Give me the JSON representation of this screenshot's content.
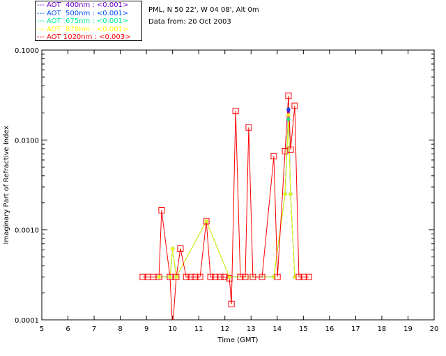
{
  "legend": [
    {
      "label": "AOT  400nm : <0.001>",
      "color": "#6a00c8"
    },
    {
      "label": "AOT  500nm : <0.001>",
      "color": "#0050ff"
    },
    {
      "label": "AOT  675nm : <0.001>",
      "color": "#00f090"
    },
    {
      "label": "AOT  870nm : <0.001>",
      "color": "#ffff00"
    },
    {
      "label": "AOT 1020nm : <0.003>",
      "color": "#ff0000"
    }
  ],
  "info": {
    "site": "PML, N 50 22', W 04 08', Alt 0m",
    "date": "Data from: 20 Oct 2003"
  },
  "chart_data": {
    "type": "line",
    "xlabel": "Time (GMT)",
    "ylabel": "Imaginary Part of Refractive Index",
    "xlim": [
      5,
      20
    ],
    "ylim": [
      0.0001,
      0.1
    ],
    "yscale": "log",
    "xticks": [
      "5",
      "6",
      "7",
      "8",
      "9",
      "10",
      "11",
      "12",
      "13",
      "14",
      "15",
      "16",
      "17",
      "18",
      "19",
      "20"
    ],
    "yticks": [
      "0.0001",
      "0.0010",
      "0.0100",
      "0.1000"
    ],
    "series": [
      {
        "name": "AOT 1020nm",
        "color": "#ff0000",
        "x": [
          8.86,
          9.05,
          9.26,
          9.48,
          9.58,
          9.9,
          10.0,
          10.14,
          10.3,
          10.52,
          10.7,
          10.86,
          11.05,
          11.29,
          11.45,
          11.63,
          11.82,
          11.98,
          12.17,
          12.25,
          12.41,
          12.59,
          12.78,
          12.91,
          13.07,
          13.42,
          13.87,
          14.01,
          14.3,
          14.43,
          14.51,
          14.67,
          14.83,
          15.02,
          15.21
        ],
        "y": [
          0.0003,
          0.0003,
          0.0003,
          0.0003,
          0.00165,
          0.0003,
          8e-05,
          0.0003,
          0.00062,
          0.0003,
          0.0003,
          0.0003,
          0.0003,
          0.00125,
          0.0003,
          0.0003,
          0.0003,
          0.0003,
          0.00029,
          0.00015,
          0.021,
          0.0003,
          0.0003,
          0.0138,
          0.0003,
          0.0003,
          0.0066,
          0.0003,
          0.0075,
          0.031,
          0.0078,
          0.024,
          0.0003,
          0.0003,
          0.0003
        ]
      },
      {
        "name": "AOT 870nm",
        "color": "#ffff00",
        "x": [
          9.48,
          9.9,
          10.0,
          10.14,
          11.29,
          12.17,
          13.87,
          14.3,
          14.43,
          14.51,
          14.67
        ],
        "y": [
          0.0003,
          0.0003,
          0.00062,
          0.0003,
          0.00125,
          0.0003,
          0.0003,
          0.0025,
          0.019,
          0.0025,
          0.0003
        ]
      },
      {
        "name": "AOT 675nm",
        "color": "#00f090",
        "x": [
          9.48,
          9.9,
          10.0,
          10.14,
          11.29,
          12.17,
          13.87,
          14.3,
          14.43,
          14.51,
          14.67
        ],
        "y": [
          0.0003,
          0.0003,
          0.00062,
          0.0003,
          0.00125,
          0.0003,
          0.0003,
          0.0025,
          0.017,
          0.0025,
          0.0003
        ]
      },
      {
        "name": "AOT 500nm",
        "color": "#0050ff",
        "x": [
          9.48,
          9.9,
          10.0,
          10.14,
          11.29,
          12.17,
          13.87,
          14.3,
          14.43,
          14.51,
          14.67
        ],
        "y": [
          0.0003,
          0.0003,
          0.00062,
          0.0003,
          0.00125,
          0.0003,
          0.0003,
          0.0025,
          0.022,
          0.0025,
          0.0003
        ]
      },
      {
        "name": "AOT 400nm",
        "color": "#6a00c8",
        "x": [
          9.48,
          9.9,
          10.0,
          10.14,
          11.29,
          12.17,
          13.87,
          14.3,
          14.43,
          14.51,
          14.67
        ],
        "y": [
          0.0003,
          0.0003,
          0.00062,
          0.0003,
          0.00125,
          0.0003,
          0.0003,
          0.0025,
          0.021,
          0.0025,
          0.0003
        ]
      }
    ]
  }
}
